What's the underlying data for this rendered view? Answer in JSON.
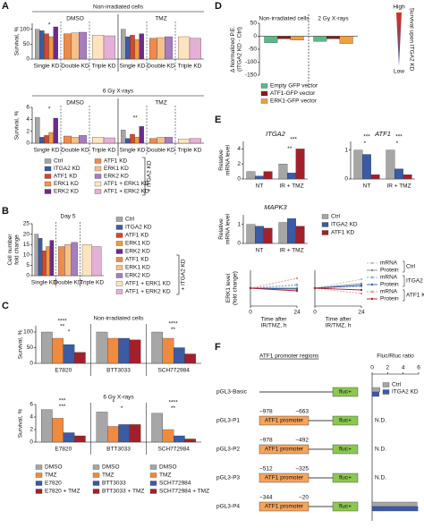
{
  "panel_labels": [
    "A",
    "B",
    "C",
    "D",
    "E",
    "F"
  ],
  "chart_data": [
    {
      "type": "bar",
      "title": "Non-irradiated cells",
      "ylabel": "Survival, %",
      "headers": [
        "DMSO",
        "TMZ"
      ],
      "categories": [
        "Single KD",
        "Double KD",
        "Triple KD",
        "Single KD",
        "Double KD",
        "Triple KD"
      ],
      "ylim": [
        0,
        120
      ],
      "yticks": [
        0,
        50,
        100
      ],
      "separators": "dashed",
      "series": [
        {
          "color": "#a6a6a6",
          "values": [
            100,
            null,
            null,
            100,
            null,
            null
          ]
        },
        {
          "color": "#3b5ba5",
          "values": [
            95,
            null,
            null,
            75,
            null,
            null
          ]
        },
        {
          "color": "#d9452b",
          "values": [
            85,
            null,
            null,
            80,
            null,
            null
          ]
        },
        {
          "color": "#f09a3e",
          "values": [
            75,
            null,
            null,
            65,
            null,
            null
          ]
        },
        {
          "color": "#6b2c8a",
          "values": [
            108,
            null,
            null,
            85,
            null,
            null
          ]
        },
        {
          "color": "#f08a4b",
          "values": [
            null,
            85,
            null,
            null,
            70,
            null
          ]
        },
        {
          "color": "#f5c08a",
          "values": [
            null,
            88,
            null,
            null,
            72,
            null
          ]
        },
        {
          "color": "#a77cc0",
          "values": [
            null,
            90,
            null,
            null,
            75,
            null
          ]
        },
        {
          "color": "#fde4c0",
          "values": [
            null,
            null,
            80,
            null,
            null,
            75
          ]
        },
        {
          "color": "#e5b0d5",
          "values": [
            null,
            null,
            78,
            null,
            null,
            70
          ]
        }
      ],
      "annotations": [
        "*"
      ]
    },
    {
      "type": "bar",
      "title": "6 Gy X-rays",
      "ylabel": "Survival, %",
      "headers": [
        "DMSO",
        "TMZ"
      ],
      "categories": [
        "Single KD",
        "Double KD",
        "Triple KD",
        "Single KD",
        "Double KD",
        "Triple KD"
      ],
      "ylim": [
        0,
        6
      ],
      "yticks": [
        0,
        2,
        4,
        6
      ],
      "separators": "dashed",
      "series": [
        {
          "name": "Ctrl",
          "color": "#a6a6a6",
          "values": [
            4.3,
            null,
            null,
            2.2,
            null,
            null
          ]
        },
        {
          "name": "ITGA2 KD",
          "color": "#3b5ba5",
          "values": [
            1.0,
            null,
            null,
            0.8,
            null,
            null
          ]
        },
        {
          "name": "ATF1 KD",
          "color": "#d9452b",
          "values": [
            1.3,
            null,
            null,
            1.5,
            null,
            null
          ]
        },
        {
          "name": "ERK1 KD",
          "color": "#f09a3e",
          "values": [
            1.8,
            null,
            null,
            1.0,
            null,
            null
          ]
        },
        {
          "name": "ERK2 KD",
          "color": "#6b2c8a",
          "values": [
            4.2,
            null,
            null,
            2.8,
            null,
            null
          ]
        },
        {
          "name": "ATF1 KD",
          "color": "#f08a4b",
          "values": [
            null,
            1.2,
            null,
            null,
            0.8,
            null
          ]
        },
        {
          "name": "ERK1 KD",
          "color": "#f5c08a",
          "values": [
            null,
            1.0,
            null,
            null,
            1.0,
            null
          ]
        },
        {
          "name": "ERK2 KD",
          "color": "#a77cc0",
          "values": [
            null,
            1.3,
            null,
            null,
            1.0,
            null
          ]
        },
        {
          "name": "ATF1 + ERK1 KD",
          "color": "#fde4c0",
          "values": [
            null,
            null,
            1.0,
            null,
            null,
            0.7
          ]
        },
        {
          "name": "ATF1 + ERK2 KD",
          "color": "#e5b0d5",
          "values": [
            null,
            null,
            0.9,
            null,
            null,
            0.8
          ]
        }
      ],
      "legend_note": "+ ITGA2 KD",
      "annotations": [
        "*",
        "**"
      ]
    },
    {
      "type": "bar",
      "title": "Day 5",
      "ylabel": [
        "Cell number",
        "fold change"
      ],
      "categories": [
        "Single KD",
        "Double KD",
        "Triple KD"
      ],
      "ylim": [
        0,
        25
      ],
      "yticks": [
        0,
        5,
        10,
        15,
        20,
        25
      ],
      "separators": "dashed",
      "series": [
        {
          "name": "Ctrl",
          "color": "#a6a6a6",
          "values": [
            20,
            null,
            null
          ]
        },
        {
          "name": "ITGA2 KD",
          "color": "#3b5ba5",
          "values": [
            18,
            null,
            null
          ]
        },
        {
          "name": "ATF1 KD",
          "color": "#d9452b",
          "values": [
            12,
            null,
            null
          ]
        },
        {
          "name": "ERK1 KD",
          "color": "#f09a3e",
          "values": [
            14,
            null,
            null
          ]
        },
        {
          "name": "ERK2 KD",
          "color": "#6b2c8a",
          "values": [
            17,
            null,
            null
          ]
        },
        {
          "name": "ATF1 KD",
          "color": "#f08a4b",
          "values": [
            null,
            14,
            null
          ]
        },
        {
          "name": "ERK1 KD",
          "color": "#f5c08a",
          "values": [
            null,
            15,
            null
          ]
        },
        {
          "name": "ERK2 KD",
          "color": "#a77cc0",
          "values": [
            null,
            16,
            null
          ]
        },
        {
          "name": "ATF1 + ERK1 KD",
          "color": "#fde4c0",
          "values": [
            null,
            null,
            15
          ]
        },
        {
          "name": "ATF1 + ERK2 KD",
          "color": "#e5b0d5",
          "values": [
            null,
            null,
            14
          ]
        }
      ],
      "legend_note": "+ ITGA2 KD"
    },
    {
      "type": "bar",
      "title": "Non-irradiated cells",
      "ylabel": "Survival, %",
      "categories": [
        "E7820",
        "BTT3033",
        "SCH772984"
      ],
      "ylim": [
        0,
        120
      ],
      "yticks": [
        0,
        50,
        100
      ],
      "separators": "solid",
      "series": [
        {
          "color": "#a6a6a6",
          "values": [
            100,
            null,
            null
          ]
        },
        {
          "color": "#f08a3e",
          "values": [
            80,
            null,
            null
          ]
        },
        {
          "color": "#3b5ba5",
          "values": [
            60,
            null,
            null
          ]
        },
        {
          "color": "#a3202a",
          "values": [
            35,
            null,
            null
          ]
        },
        {
          "color": "#a6a6a6",
          "values": [
            null,
            100,
            null
          ]
        },
        {
          "color": "#f08a3e",
          "values": [
            null,
            80,
            null
          ]
        },
        {
          "color": "#3b5ba5",
          "values": [
            null,
            80,
            null
          ]
        },
        {
          "color": "#a3202a",
          "values": [
            null,
            75,
            null
          ]
        },
        {
          "color": "#a6a6a6",
          "values": [
            null,
            null,
            100
          ]
        },
        {
          "color": "#f08a3e",
          "values": [
            null,
            null,
            80
          ]
        },
        {
          "color": "#3b5ba5",
          "values": [
            null,
            null,
            50
          ]
        },
        {
          "color": "#a3202a",
          "values": [
            null,
            null,
            30
          ]
        }
      ],
      "annotations": [
        "****",
        "**",
        "*",
        "****",
        "**"
      ]
    },
    {
      "type": "bar",
      "title": "6 Gy X-rays",
      "ylabel": "Survival, %",
      "categories": [
        "E7820",
        "BTT3033",
        "SCH772984"
      ],
      "ylim": [
        0,
        6
      ],
      "yticks": [
        0,
        2,
        4,
        6
      ],
      "separators": "solid",
      "series": [
        {
          "name": "DMSO",
          "color": "#a6a6a6",
          "values": [
            5.2,
            null,
            null
          ]
        },
        {
          "name": "TMZ",
          "color": "#f08a3e",
          "values": [
            3.8,
            null,
            null
          ]
        },
        {
          "name": "E7820",
          "color": "#3b5ba5",
          "values": [
            1.5,
            null,
            null
          ]
        },
        {
          "name": "E7820 + TMZ",
          "color": "#a3202a",
          "values": [
            1.0,
            null,
            null
          ]
        },
        {
          "name": "DMSO",
          "color": "#a6a6a6",
          "values": [
            null,
            4.8,
            null
          ]
        },
        {
          "name": "TMZ",
          "color": "#f08a3e",
          "values": [
            null,
            2.5,
            null
          ]
        },
        {
          "name": "BTT3033",
          "color": "#3b5ba5",
          "values": [
            null,
            2.8,
            null
          ]
        },
        {
          "name": "BTT3033 + TMZ",
          "color": "#a3202a",
          "values": [
            null,
            2.8,
            null
          ]
        },
        {
          "name": "DMSO",
          "color": "#a6a6a6",
          "values": [
            null,
            null,
            4.6
          ]
        },
        {
          "name": "TMZ",
          "color": "#f08a3e",
          "values": [
            null,
            null,
            2.0
          ]
        },
        {
          "name": "SCH772984",
          "color": "#3b5ba5",
          "values": [
            null,
            null,
            1.0
          ]
        },
        {
          "name": "SCH772984 + TMZ",
          "color": "#a3202a",
          "values": [
            null,
            null,
            0.5
          ]
        }
      ],
      "annotations": [
        "***",
        "***",
        "*",
        "*",
        "****",
        "**"
      ]
    },
    {
      "type": "bar",
      "ylabel": [
        "Δ Normalized P.E.",
        "(ITGA2 KD - Ctrl)"
      ],
      "headers": [
        "Non-irradiated cells",
        "2 Gy X-rays"
      ],
      "categories": [
        null,
        null
      ],
      "ylim": [
        -150,
        50
      ],
      "yticks": [
        -150,
        -100,
        -50,
        0,
        50
      ],
      "series": [
        {
          "name": "Empty GFP vector",
          "color": "#5cb88a",
          "values": [
            -25,
            -20
          ]
        },
        {
          "name": "ATF1-GFP vector",
          "color": "#8b1a1a",
          "values": [
            -10,
            -10
          ]
        },
        {
          "name": "ERK1-GFP vector",
          "color": "#f0a040",
          "values": [
            -15,
            -28
          ]
        }
      ],
      "side_labels": [
        "High",
        "Survival upon ITGA2 KD",
        "Low"
      ]
    },
    {
      "type": "bar",
      "title": "ITGA2",
      "ylabel": [
        "Relative",
        "mRNA level"
      ],
      "categories": [
        "NT",
        "IR + TMZ"
      ],
      "ylim": [
        0,
        5
      ],
      "yticks": [
        0,
        2,
        4
      ],
      "series": [
        {
          "color": "#a6a6a6",
          "values": [
            1.0,
            2.0
          ]
        },
        {
          "color": "#3b5ba5",
          "values": [
            0.4,
            0.8
          ]
        },
        {
          "color": "#a3202a",
          "values": [
            1.0,
            4.0
          ]
        }
      ],
      "annotations": [
        "***",
        "**"
      ]
    },
    {
      "type": "bar",
      "title": "ATF1",
      "categories": [
        "NT",
        "IR + TMZ"
      ],
      "ylim": [
        0,
        1.3
      ],
      "yticks": [
        0,
        1
      ],
      "series": [
        {
          "color": "#a6a6a6",
          "values": [
            1.0,
            1.0
          ]
        },
        {
          "color": "#3b5ba5",
          "values": [
            0.85,
            0.35
          ]
        },
        {
          "color": "#a3202a",
          "values": [
            0.15,
            0.15
          ]
        }
      ],
      "annotations": [
        "***",
        "*",
        "***",
        "*"
      ]
    },
    {
      "type": "bar",
      "title": "MAPK3",
      "ylabel": [
        "Relative",
        "mRNA level"
      ],
      "categories": [
        "NT",
        "IR + TMZ"
      ],
      "ylim": [
        0,
        1.5
      ],
      "yticks": [
        0,
        1
      ],
      "series": [
        {
          "name": "Ctrl",
          "color": "#a6a6a6",
          "values": [
            1.0,
            1.1
          ]
        },
        {
          "name": "ITGA2 KD",
          "color": "#3b5ba5",
          "values": [
            0.9,
            1.3
          ]
        },
        {
          "name": "ATF1 KD",
          "color": "#a3202a",
          "values": [
            0.8,
            0.9
          ]
        }
      ]
    },
    {
      "type": "line",
      "ylabel": [
        "ERK1 level",
        "(fold change)"
      ],
      "xlabel": [
        "Time after",
        "IR/TMZ, h"
      ],
      "x": [
        0,
        24
      ],
      "xlim": [
        0,
        24
      ],
      "xticks": [
        0,
        24
      ],
      "ylim": [
        0,
        2
      ],
      "series": [
        {
          "color": "#bbbbbb",
          "dashed": true,
          "values": [
            1,
            1.15
          ]
        },
        {
          "color": "#888888",
          "dashed": false,
          "values": [
            1,
            1.0
          ]
        },
        {
          "color": "#7fa7dd",
          "dashed": true,
          "values": [
            1,
            1.2
          ]
        },
        {
          "color": "#3b5ba5",
          "dashed": false,
          "values": [
            1,
            0.95
          ]
        },
        {
          "color": "#e58a8a",
          "dashed": true,
          "values": [
            1,
            1.55
          ]
        },
        {
          "color": "#a3202a",
          "dashed": false,
          "values": [
            1,
            0.85
          ]
        }
      ]
    },
    {
      "type": "line",
      "xlabel": [
        "Time after",
        "IR/TMZ, h"
      ],
      "x": [
        0,
        24
      ],
      "xlim": [
        0,
        24
      ],
      "xticks": [
        0,
        24
      ],
      "ylim": [
        0,
        2
      ],
      "series": [
        {
          "name": "mRNA",
          "color": "#bbbbbb",
          "dashed": true,
          "values": [
            1,
            1.5
          ]
        },
        {
          "name": "Protein",
          "color": "#888888",
          "dashed": false,
          "values": [
            1,
            1.25
          ]
        },
        {
          "name": "mRNA",
          "color": "#7fa7dd",
          "dashed": true,
          "values": [
            1,
            1.1
          ]
        },
        {
          "name": "Protein",
          "color": "#3b5ba5",
          "dashed": false,
          "values": [
            1,
            1.15
          ]
        },
        {
          "name": "mRNA",
          "color": "#e58a8a",
          "dashed": true,
          "values": [
            1,
            0.7
          ]
        },
        {
          "name": "Protein",
          "color": "#a3202a",
          "dashed": false,
          "values": [
            1,
            0.9
          ]
        }
      ],
      "legend_groups": [
        "Ctrl",
        "ITGA2 KD",
        "ATF1 KD"
      ]
    },
    {
      "type": "hbar",
      "title": "Fluc/Rluc ratio",
      "diagram_title": "ATF1 promoter regions",
      "categories": [
        "pGL3-Basic",
        "pGL3-P1",
        "pGL3-P2",
        "pGL3-P3",
        "pGL3-P4"
      ],
      "xlim": [
        0,
        6
      ],
      "xticks": [
        0,
        2,
        4,
        6
      ],
      "series": [
        {
          "name": "Ctrl",
          "color": "#a6a6a6",
          "values": [
            1.0,
            null,
            null,
            null,
            5.8
          ]
        },
        {
          "name": "ITGA2 KD",
          "color": "#3b5ba5",
          "values": [
            0.9,
            null,
            null,
            null,
            5.9
          ]
        }
      ],
      "row_notes": [
        null,
        "N.D.",
        "N.D.",
        "N.D.",
        null
      ],
      "regions": [
        null,
        [
          "−978",
          "−663"
        ],
        [
          "−978",
          "−492"
        ],
        [
          "−512",
          "−325"
        ],
        [
          "−344",
          "−20"
        ]
      ],
      "promoter_label": "ATF1 promoter",
      "reporter_label": "fluc+"
    }
  ]
}
